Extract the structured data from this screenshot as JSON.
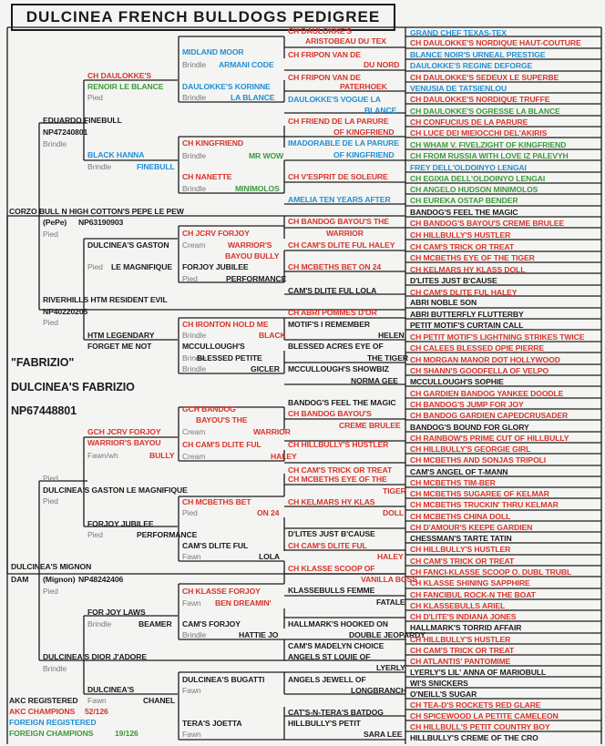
{
  "title": "DULCINEA FRENCH BULLDOGS PEDIGREE",
  "colors": {
    "black": "#1a1a1a",
    "red": "#d9332b",
    "blue": "#1f8fd6",
    "green": "#3a9a3a",
    "gray": "#7a7a7a"
  },
  "texts": [
    {
      "t": "GRAND CHEF TEXAS-TEX",
      "c": "b"
    },
    {
      "t": "CH DAULOKKE'S",
      "c": "r"
    },
    {
      "t": "ARISTOBEAU DU TEX",
      "c": "r"
    },
    {
      "t": "CH DAULOKKE'S NORDIQUE HAUT-COUTURE",
      "c": "r"
    },
    {
      "t": "MIDLAND MOOR",
      "c": "b"
    },
    {
      "t": "CH FRIPON VAN DE",
      "c": "r"
    },
    {
      "t": "BLANCE NOIR'S URNEAL PRESTIGE",
      "c": "b"
    },
    {
      "t": "Brindle",
      "c": "gr"
    },
    {
      "t": "ARMANI CODE",
      "c": "b"
    },
    {
      "t": "DU NORD",
      "c": "r"
    },
    {
      "t": "DAULOKKE'S REGINE DEFORGE",
      "c": "b"
    },
    {
      "t": "CH DAULOKKE'S",
      "c": "r"
    },
    {
      "t": "CH FRIPON VAN DE",
      "c": "r"
    },
    {
      "t": "CH DAULOKKE'S SEDEUX LE SUPERBE",
      "c": "r"
    },
    {
      "t": "RENOIR LE BLANCE",
      "c": "g"
    },
    {
      "t": "DAULOKKE'S KORINNE",
      "c": "b"
    },
    {
      "t": "PATERHOEK",
      "c": "r"
    },
    {
      "t": "VENUSIA DE TATSIENLOU",
      "c": "b"
    },
    {
      "t": "Pied",
      "c": "gr"
    },
    {
      "t": "Brindle",
      "c": "gr"
    },
    {
      "t": "LA BLANCE",
      "c": "b"
    },
    {
      "t": "DAULOKKE'S VOGUE LA",
      "c": "b"
    },
    {
      "t": "CH DAULOKKE'S NORDIQUE TRUFFE",
      "c": "r"
    },
    {
      "t": "BLANCE",
      "c": "b"
    },
    {
      "t": "CH DAULOKKE'S OGRESSE LA BLANCE",
      "c": "g"
    },
    {
      "t": "EDUARDO FINEBULL",
      "c": "k"
    },
    {
      "t": "CH FRIEND DE LA PARURE",
      "c": "r"
    },
    {
      "t": "CH CONFUCIUS DE LA PARURE",
      "c": "r"
    },
    {
      "t": "NP47240801",
      "c": "k"
    },
    {
      "t": "OF KINGFRIEND",
      "c": "r"
    },
    {
      "t": "CH LUCE DEI MIEIOCCHI DEL'AKIRIS",
      "c": "r"
    },
    {
      "t": "Brindle",
      "c": "gr"
    },
    {
      "t": "CH KINGFRIEND",
      "c": "r"
    },
    {
      "t": "IMADORABLE DE LA PARURE",
      "c": "b"
    },
    {
      "t": "CH WHAM V. FIVELZIGHT OF KINGFRIEND",
      "c": "g"
    },
    {
      "t": "BLACK HANNA",
      "c": "b"
    },
    {
      "t": "Brindle",
      "c": "gr"
    },
    {
      "t": "MR WOW",
      "c": "g"
    },
    {
      "t": "OF KINGFRIEND",
      "c": "b"
    },
    {
      "t": "CH FROM RUSSIA WITH LOVE IZ PALEVYH",
      "c": "g"
    },
    {
      "t": "Brindle",
      "c": "gr"
    },
    {
      "t": "FINEBULL",
      "c": "b"
    },
    {
      "t": "FREY DELL'OLDOINYO LENGAI",
      "c": "b"
    },
    {
      "t": "CH NANETTE",
      "c": "r"
    },
    {
      "t": "CH V'ESPRIT DE SOLEURE",
      "c": "r"
    },
    {
      "t": "CH EGIXIA DELL'OLDOINYO LENGAI",
      "c": "g"
    },
    {
      "t": "Brindle",
      "c": "gr"
    },
    {
      "t": "MINIMOLOS",
      "c": "g"
    },
    {
      "t": "CH ANGELO HUDSON MINIMOLOS",
      "c": "g"
    },
    {
      "t": "AMELIA TEN YEARS AFTER",
      "c": "b"
    },
    {
      "t": "CH EUREKA OSTAP BENDER",
      "c": "g"
    },
    {
      "t": "CORZO BULL N HIGH COTTON'S PEPE LE PEW",
      "c": "k"
    },
    {
      "t": "BANDOG'S FEEL THE MAGIC",
      "c": "k"
    },
    {
      "t": "(PePe)",
      "c": "k"
    },
    {
      "t": "NP63190903",
      "c": "k"
    },
    {
      "t": "CH BANDOG BAYOU'S THE",
      "c": "r"
    },
    {
      "t": "CH BANDOG'S BAYOU'S CREME BRULEE",
      "c": "r"
    },
    {
      "t": "Pied",
      "c": "gr"
    },
    {
      "t": "CH JCRV FORJOY",
      "c": "r"
    },
    {
      "t": "WARRIOR",
      "c": "r"
    },
    {
      "t": "CH HILLBULLY'S HUSTLER",
      "c": "r"
    },
    {
      "t": "DULCINEA'S GASTON",
      "c": "k"
    },
    {
      "t": "Cream",
      "c": "gr"
    },
    {
      "t": "WARRIOR'S",
      "c": "r"
    },
    {
      "t": "CH CAM'S DLITE FUL HALEY",
      "c": "r"
    },
    {
      "t": "CH CAM'S TRICK OR TREAT",
      "c": "r"
    },
    {
      "t": "BAYOU BULLY",
      "c": "r"
    },
    {
      "t": "CH MCBETHS EYE OF THE TIGER",
      "c": "r"
    },
    {
      "t": "Pied",
      "c": "gr"
    },
    {
      "t": "LE MAGNIFIQUE",
      "c": "k"
    },
    {
      "t": "FORJOY JUBILEE",
      "c": "k"
    },
    {
      "t": "CH MCBETHS BET ON 24",
      "c": "r"
    },
    {
      "t": "CH KELMARS HY KLASS DOLL",
      "c": "r"
    },
    {
      "t": "Pied",
      "c": "gr"
    },
    {
      "t": "PERFORMANCE",
      "c": "k"
    },
    {
      "t": "D'LITES JUST B'CAUSE",
      "c": "k"
    },
    {
      "t": "CAM'S DLITE FUL LOLA",
      "c": "k"
    },
    {
      "t": "CH CAM'S DLITE FUL HALEY",
      "c": "r"
    },
    {
      "t": "RIVERHILLS HTM RESIDENT EVIL",
      "c": "k"
    },
    {
      "t": "ABRI NOBLE SON",
      "c": "k"
    },
    {
      "t": "NP40220205",
      "c": "k"
    },
    {
      "t": "CH ABRI POMMES D'OR",
      "c": "r"
    },
    {
      "t": "ABRI BUTTERFLY FLUTTERBY",
      "c": "k"
    },
    {
      "t": "Pied",
      "c": "gr"
    },
    {
      "t": "CH IRONTON HOLD ME",
      "c": "r"
    },
    {
      "t": "MOTIF'S I REMEMBER",
      "c": "k"
    },
    {
      "t": "PETIT MOTIF'S CURTAIN CALL",
      "c": "k"
    },
    {
      "t": "HTM LEGENDARY",
      "c": "k"
    },
    {
      "t": "Brindle",
      "c": "gr"
    },
    {
      "t": "BLACK",
      "c": "r"
    },
    {
      "t": "HELEN",
      "c": "k"
    },
    {
      "t": "CH PETIT MOTIF'S LIGHTNING STRIKES TWICE",
      "c": "r"
    },
    {
      "t": "FORGET ME NOT",
      "c": "k"
    },
    {
      "t": "MCCULLOUGH'S",
      "c": "k"
    },
    {
      "t": "BLESSED ACRES EYE OF",
      "c": "k"
    },
    {
      "t": "CH CALEES BLESSED OPIE PIERRE",
      "c": "r"
    },
    {
      "t": "Brindle",
      "c": "gr"
    },
    {
      "t": "BLESSED PETITE",
      "c": "k"
    },
    {
      "t": "THE TIGER",
      "c": "k"
    },
    {
      "t": "CH MORGAN MANOR DOT HOLLYWOOD",
      "c": "r"
    },
    {
      "t": "Brindle",
      "c": "gr"
    },
    {
      "t": "GICLER",
      "c": "k"
    },
    {
      "t": "MCCULLOUGH'S SHOWBIZ",
      "c": "k"
    },
    {
      "t": "CH SHANN'S GOODFELLA OF VELPO",
      "c": "r"
    },
    {
      "t": "NORMA GEE",
      "c": "k"
    },
    {
      "t": "MCCULLOUGH'S SOPHIE",
      "c": "k"
    },
    {
      "t": "\"FABRIZIO\"",
      "c": "k"
    },
    {
      "t": "DULCINEA'S FABRIZIO",
      "c": "k"
    },
    {
      "t": "CH GARDIEN BANDOG YANKEE DOODLE",
      "c": "r"
    },
    {
      "t": "NP67448801",
      "c": "k"
    },
    {
      "t": "BANDOG'S FEEL THE MAGIC",
      "c": "k"
    },
    {
      "t": "CH BANDOG'S JUMP FOR JOY",
      "c": "r"
    },
    {
      "t": "GCH BANDOG",
      "c": "r"
    },
    {
      "t": "CH BANDOG BAYOU'S",
      "c": "r"
    },
    {
      "t": "CH BANDOG GARDIEN CAPEDCRUSADER",
      "c": "r"
    },
    {
      "t": "BAYOU'S THE",
      "c": "r"
    },
    {
      "t": "CREME BRULEE",
      "c": "r"
    },
    {
      "t": "BANDOG'S BOUND FOR GLORY",
      "c": "k"
    },
    {
      "t": "GCH JCRV FORJOY",
      "c": "r"
    },
    {
      "t": "Cream",
      "c": "gr"
    },
    {
      "t": "WARRIOR",
      "c": "r"
    },
    {
      "t": "CH RAINBOW'S PRIME CUT OF HILLBULLY",
      "c": "r"
    },
    {
      "t": "WARRIOR'S BAYOU",
      "c": "r"
    },
    {
      "t": "CH CAM'S DLITE FUL",
      "c": "r"
    },
    {
      "t": "CH HILLBULLY'S HUSTLER",
      "c": "r"
    },
    {
      "t": "CH HILLBULLY'S GEORGIE GIRL",
      "c": "r"
    },
    {
      "t": "Fawn/wh",
      "c": "gr"
    },
    {
      "t": "BULLY",
      "c": "r"
    },
    {
      "t": "Cream",
      "c": "gr"
    },
    {
      "t": "HALEY",
      "c": "r"
    },
    {
      "t": "CH MCBETHS AND SONJAS TRIPOLI",
      "c": "r"
    },
    {
      "t": "CH CAM'S TRICK OR TREAT",
      "c": "r"
    },
    {
      "t": "CAM'S ANGEL OF T-MANN",
      "c": "k"
    },
    {
      "t": "Pied",
      "c": "gr"
    },
    {
      "t": "DULCINEA'S GASTON LE MAGNIFIQUE",
      "c": "k"
    },
    {
      "t": "CH MCBETHS EYE OF THE",
      "c": "r"
    },
    {
      "t": "CH MCBETHS TIM-BER",
      "c": "r"
    },
    {
      "t": "Pied",
      "c": "gr"
    },
    {
      "t": "TIGER",
      "c": "r"
    },
    {
      "t": "CH MCBETHS SUGAREE OF KELMAR",
      "c": "r"
    },
    {
      "t": "CH MCBETHS BET",
      "c": "r"
    },
    {
      "t": "CH KELMARS HY KLAS",
      "c": "r"
    },
    {
      "t": "CH MCBETHS TRUCKIN' THRU KELMAR",
      "c": "r"
    },
    {
      "t": "Pied",
      "c": "gr"
    },
    {
      "t": "ON 24",
      "c": "r"
    },
    {
      "t": "DOLL",
      "c": "r"
    },
    {
      "t": "CH MCBETHS CHINA DOLL",
      "c": "r"
    },
    {
      "t": "FORJOY JUBILEE",
      "c": "k"
    },
    {
      "t": "CH D'AMOUR'S KEEPE GARDIEN",
      "c": "r"
    },
    {
      "t": "Pied",
      "c": "gr"
    },
    {
      "t": "PERFORMANCE",
      "c": "k"
    },
    {
      "t": "D'LITES JUST B'CAUSE",
      "c": "k"
    },
    {
      "t": "CHESSMAN'S TARTE TATIN",
      "c": "k"
    },
    {
      "t": "CAM'S DLITE FUL",
      "c": "k"
    },
    {
      "t": "CH CAM'S DLITE FUL",
      "c": "r"
    },
    {
      "t": "CH HILLBULLY'S HUSTLER",
      "c": "r"
    },
    {
      "t": "Fawn",
      "c": "gr"
    },
    {
      "t": "LOLA",
      "c": "k"
    },
    {
      "t": "HALEY",
      "c": "r"
    },
    {
      "t": "CH CAM'S TRICK OR TREAT",
      "c": "r"
    },
    {
      "t": "DULCINEA'S MIGNON",
      "c": "k"
    },
    {
      "t": "CH KLASSE SCOOP OF",
      "c": "r"
    },
    {
      "t": "CH FANCI-KLASSE SCOOP O. DUBL TRUBL",
      "c": "r"
    },
    {
      "t": "DAM",
      "c": "k"
    },
    {
      "t": "(Mignon)",
      "c": "k"
    },
    {
      "t": "NP48242406",
      "c": "k"
    },
    {
      "t": "VANILLA BOSS",
      "c": "r"
    },
    {
      "t": "CH KLASSE SHINING SAPPHIRE",
      "c": "r"
    },
    {
      "t": "Pied",
      "c": "gr"
    },
    {
      "t": "CH KLASSE FORJOY",
      "c": "r"
    },
    {
      "t": "KLASSEBULLS FEMME",
      "c": "k"
    },
    {
      "t": "CH FANCIBUL ROCK-N THE BOAT",
      "c": "r"
    },
    {
      "t": "Fawn",
      "c": "gr"
    },
    {
      "t": "BEN DREAMIN'",
      "c": "r"
    },
    {
      "t": "FATALE",
      "c": "k"
    },
    {
      "t": "CH KLASSEBULLS ARIEL",
      "c": "r"
    },
    {
      "t": "FOR JOY LAWS",
      "c": "k"
    },
    {
      "t": "CH D'LITE'S INDIANA JONES",
      "c": "r"
    },
    {
      "t": "Brindle",
      "c": "gr"
    },
    {
      "t": "BEAMER",
      "c": "k"
    },
    {
      "t": "CAM'S FORJOY",
      "c": "k"
    },
    {
      "t": "HALLMARK'S HOOKED ON",
      "c": "k"
    },
    {
      "t": "HALLMARK'S TORRID AFFAIR",
      "c": "k"
    },
    {
      "t": "Brindle",
      "c": "gr"
    },
    {
      "t": "HATTIE JO",
      "c": "k"
    },
    {
      "t": "DOUBLE JEOPARDY",
      "c": "k"
    },
    {
      "t": "CH HILLBULLY'S HUSTLER",
      "c": "r"
    },
    {
      "t": "CAM'S MADELYN CHOICE",
      "c": "k"
    },
    {
      "t": "CH CAM'S TRICK OR TREAT",
      "c": "r"
    },
    {
      "t": "DULCINEA'S DIOR J'ADORE",
      "c": "k"
    },
    {
      "t": "ANGELS ST LOUIE OF",
      "c": "k"
    },
    {
      "t": "CH ATLANTIS' PANTOMIME",
      "c": "r"
    },
    {
      "t": "Brindle",
      "c": "gr"
    },
    {
      "t": "LYERLY",
      "c": "k"
    },
    {
      "t": "LYERLY'S LIL' ANNA OF MARIOBULL",
      "c": "k"
    },
    {
      "t": "DULCINEA'S BUGATTI",
      "c": "k"
    },
    {
      "t": "ANGELS JEWELL OF",
      "c": "k"
    },
    {
      "t": "WI'S SNICKERS",
      "c": "k"
    },
    {
      "t": "DULCINEA'S",
      "c": "k"
    },
    {
      "t": "Fawn",
      "c": "gr"
    },
    {
      "t": "LONGBRANCH",
      "c": "k"
    },
    {
      "t": "O'NEILL'S SUGAR",
      "c": "k"
    },
    {
      "t": "AKC REGISTERED",
      "c": "k"
    },
    {
      "t": "Fawn",
      "c": "gr"
    },
    {
      "t": "CHANEL",
      "c": "k"
    },
    {
      "t": "CH TEA-D'S ROCKETS RED GLARE",
      "c": "r"
    },
    {
      "t": "AKC CHAMPIONS",
      "c": "r"
    },
    {
      "t": "52/126",
      "c": "r"
    },
    {
      "t": "CAT'S-N-TERA'S BATDOG",
      "c": "k"
    },
    {
      "t": "CH SPICEWOOD LA PETITE CAMELEON",
      "c": "r"
    },
    {
      "t": "FOREIGN REGISTERED",
      "c": "b"
    },
    {
      "t": "TERA'S JOETTA",
      "c": "k"
    },
    {
      "t": "HILLBULLY'S PETIT",
      "c": "k"
    },
    {
      "t": "CH HILLBULL'S PETIT COUNTRY BOY",
      "c": "r"
    },
    {
      "t": "FOREIGN CHAMPIONS",
      "c": "g"
    },
    {
      "t": "19/126",
      "c": "g"
    },
    {
      "t": "Fawn",
      "c": "gr"
    },
    {
      "t": "SARA LEE",
      "c": "k"
    },
    {
      "t": "HILLBULLY'S CREME OF THE CRO",
      "c": "k"
    }
  ]
}
